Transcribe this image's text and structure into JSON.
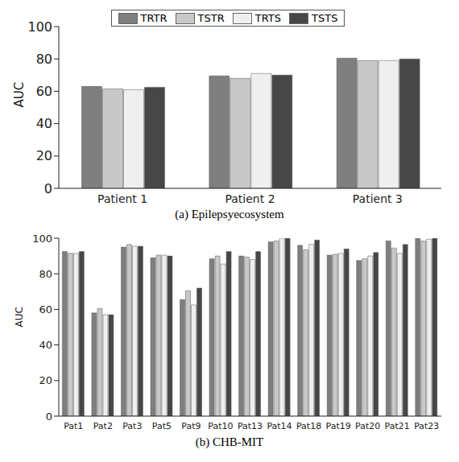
{
  "chart_data": [
    {
      "type": "bar",
      "title": "(a) Epilepsyecosystem",
      "y_label": "AUC",
      "categories": [
        "Patient 1",
        "Patient 2",
        "Patient 3"
      ],
      "series": [
        {
          "name": "TRTR",
          "color": "#7f7f7f",
          "values": [
            63,
            69.5,
            80.5
          ]
        },
        {
          "name": "TSTR",
          "color": "#c8c8c8",
          "values": [
            61.5,
            68,
            79
          ]
        },
        {
          "name": "TRTS",
          "color": "#efefef",
          "values": [
            61,
            71,
            79
          ]
        },
        {
          "name": "TSTS",
          "color": "#474747",
          "values": [
            62.5,
            70,
            80
          ]
        }
      ],
      "ylim": [
        0,
        100
      ],
      "yticks": [
        0,
        20,
        40,
        60,
        80,
        100
      ],
      "legend": "top"
    },
    {
      "type": "bar",
      "title": "(b) CHB-MIT",
      "y_label": "AUC",
      "categories": [
        "Pat1",
        "Pat2",
        "Pat3",
        "Pat5",
        "Pat9",
        "Pat10",
        "Pat13",
        "Pat14",
        "Pat18",
        "Pat19",
        "Pat20",
        "Pat21",
        "Pat23"
      ],
      "series": [
        {
          "name": "TRTR",
          "color": "#7f7f7f",
          "values": [
            92.5,
            58,
            95,
            89,
            65.5,
            88.5,
            90,
            98,
            96,
            90.5,
            87.5,
            98.5,
            100
          ]
        },
        {
          "name": "TSTR",
          "color": "#c8c8c8",
          "values": [
            91.5,
            60.5,
            96.5,
            90.5,
            70.5,
            90,
            89.5,
            98.5,
            93.5,
            91,
            88.5,
            94.5,
            98.5
          ]
        },
        {
          "name": "TRTS",
          "color": "#efefef",
          "values": [
            91.5,
            57,
            95.5,
            90.5,
            62.5,
            85.5,
            88,
            100,
            96.5,
            91.5,
            90,
            91.5,
            99.5
          ]
        },
        {
          "name": "TSTS",
          "color": "#474747",
          "values": [
            92.5,
            57,
            95.5,
            90,
            72,
            92.5,
            92.5,
            100,
            99,
            94,
            92,
            96.5,
            100
          ]
        }
      ],
      "ylim": [
        0,
        100
      ],
      "yticks": [
        0,
        20,
        40,
        60,
        80,
        100
      ]
    }
  ]
}
